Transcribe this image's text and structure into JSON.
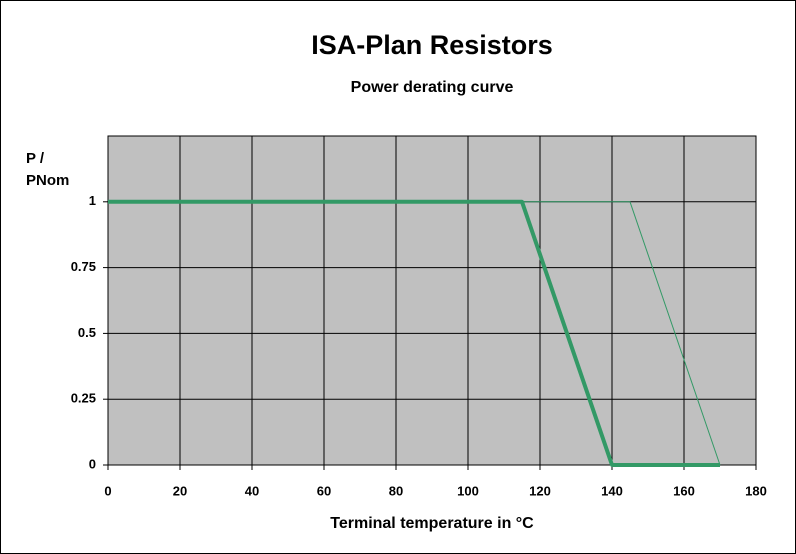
{
  "chart_data": {
    "type": "line",
    "title": "ISA-Plan Resistors",
    "subtitle": "Power derating curve",
    "xlabel": "Terminal temperature in °C",
    "ylabel": [
      "P /",
      "PNom"
    ],
    "series": [
      {
        "color": "#339966",
        "width": 4,
        "x": [
          0,
          115,
          140,
          170
        ],
        "values": [
          1,
          1,
          0,
          0
        ]
      },
      {
        "color": "#339966",
        "width": 1,
        "x": [
          0,
          145,
          170
        ],
        "values": [
          1,
          1,
          0
        ]
      }
    ],
    "xlim": [
      0,
      180
    ],
    "xticks": [
      0,
      20,
      40,
      60,
      80,
      100,
      120,
      140,
      160,
      180
    ],
    "ylim": [
      0,
      1.25
    ],
    "yticks": [
      0,
      0.25,
      0.5,
      0.75,
      1
    ],
    "grid": true,
    "plot_background": "#c0c0c0"
  }
}
